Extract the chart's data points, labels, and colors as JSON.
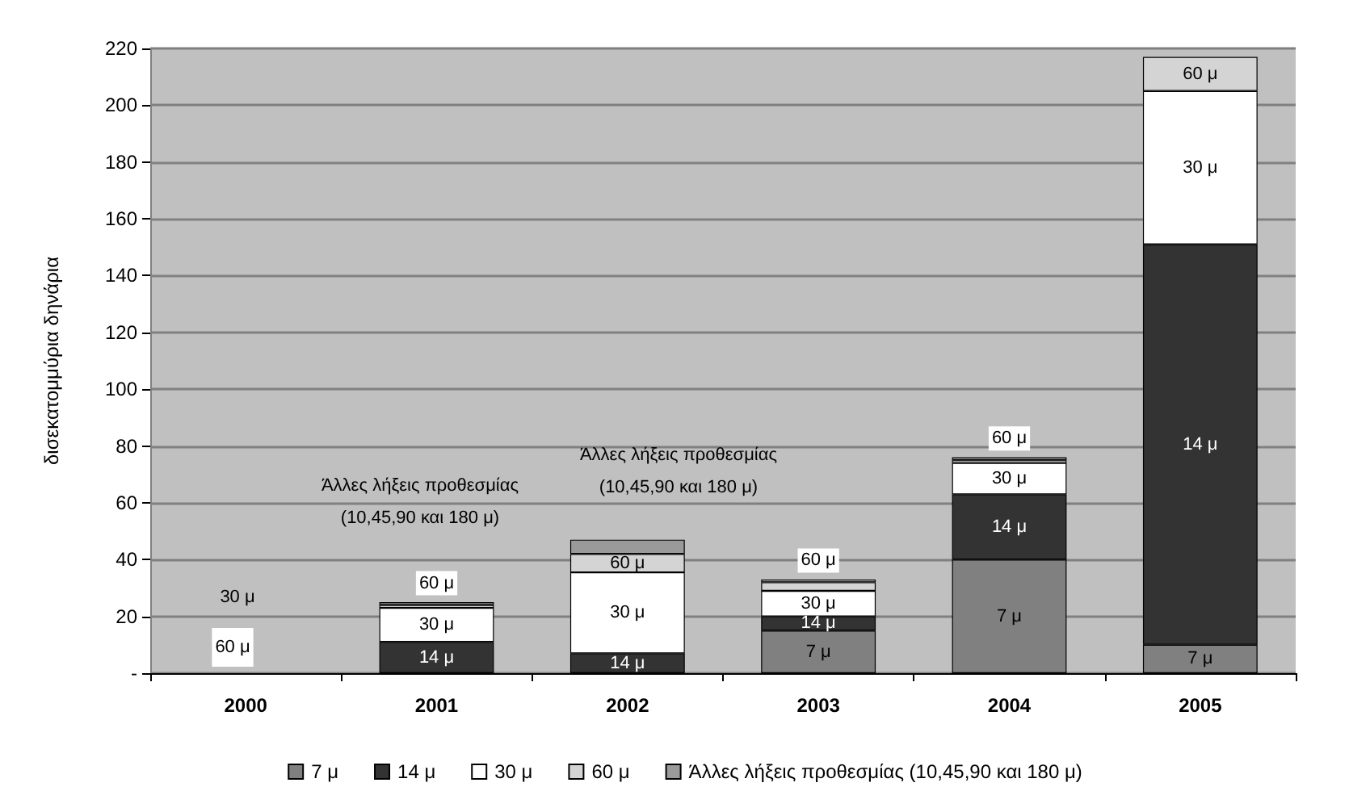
{
  "chart_data": {
    "type": "bar",
    "stacked": true,
    "ylabel": "δισεκατομμύρια δηνάρια",
    "categories": [
      "2000",
      "2001",
      "2002",
      "2003",
      "2004",
      "2005"
    ],
    "series": [
      {
        "name": "7 μ",
        "color": "#808080",
        "values": [
          null,
          null,
          null,
          15,
          40,
          10
        ]
      },
      {
        "name": "14 μ",
        "color": "#333333",
        "values": [
          null,
          11,
          7,
          5,
          23,
          141
        ]
      },
      {
        "name": "30 μ",
        "color": "#ffffff",
        "values": [
          null,
          12,
          28.5,
          9,
          11,
          54
        ]
      },
      {
        "name": "60 μ",
        "color": "#d4d4d4",
        "values": [
          null,
          1,
          6.5,
          3,
          1,
          12
        ]
      },
      {
        "name": "Άλλες λήξεις προθεσμίας (10,45,90 και 180 μ)",
        "color": "#9a9a9a",
        "values": [
          null,
          1,
          5,
          1,
          1,
          null
        ]
      }
    ],
    "annotations": [
      "30 μ",
      "60 μ",
      "Άλλες λήξεις προθεσμίας (10,45,90 και 180 μ)",
      "Άλλες λήξεις προθεσμίας (10,45,90 και 180 μ)"
    ],
    "ylim": [
      0,
      220
    ],
    "yticks": [
      {
        "value": 0,
        "label": "-"
      },
      20,
      40,
      60,
      80,
      100,
      120,
      140,
      160,
      180,
      200,
      220
    ],
    "grid": "y",
    "legend": "bottom"
  }
}
